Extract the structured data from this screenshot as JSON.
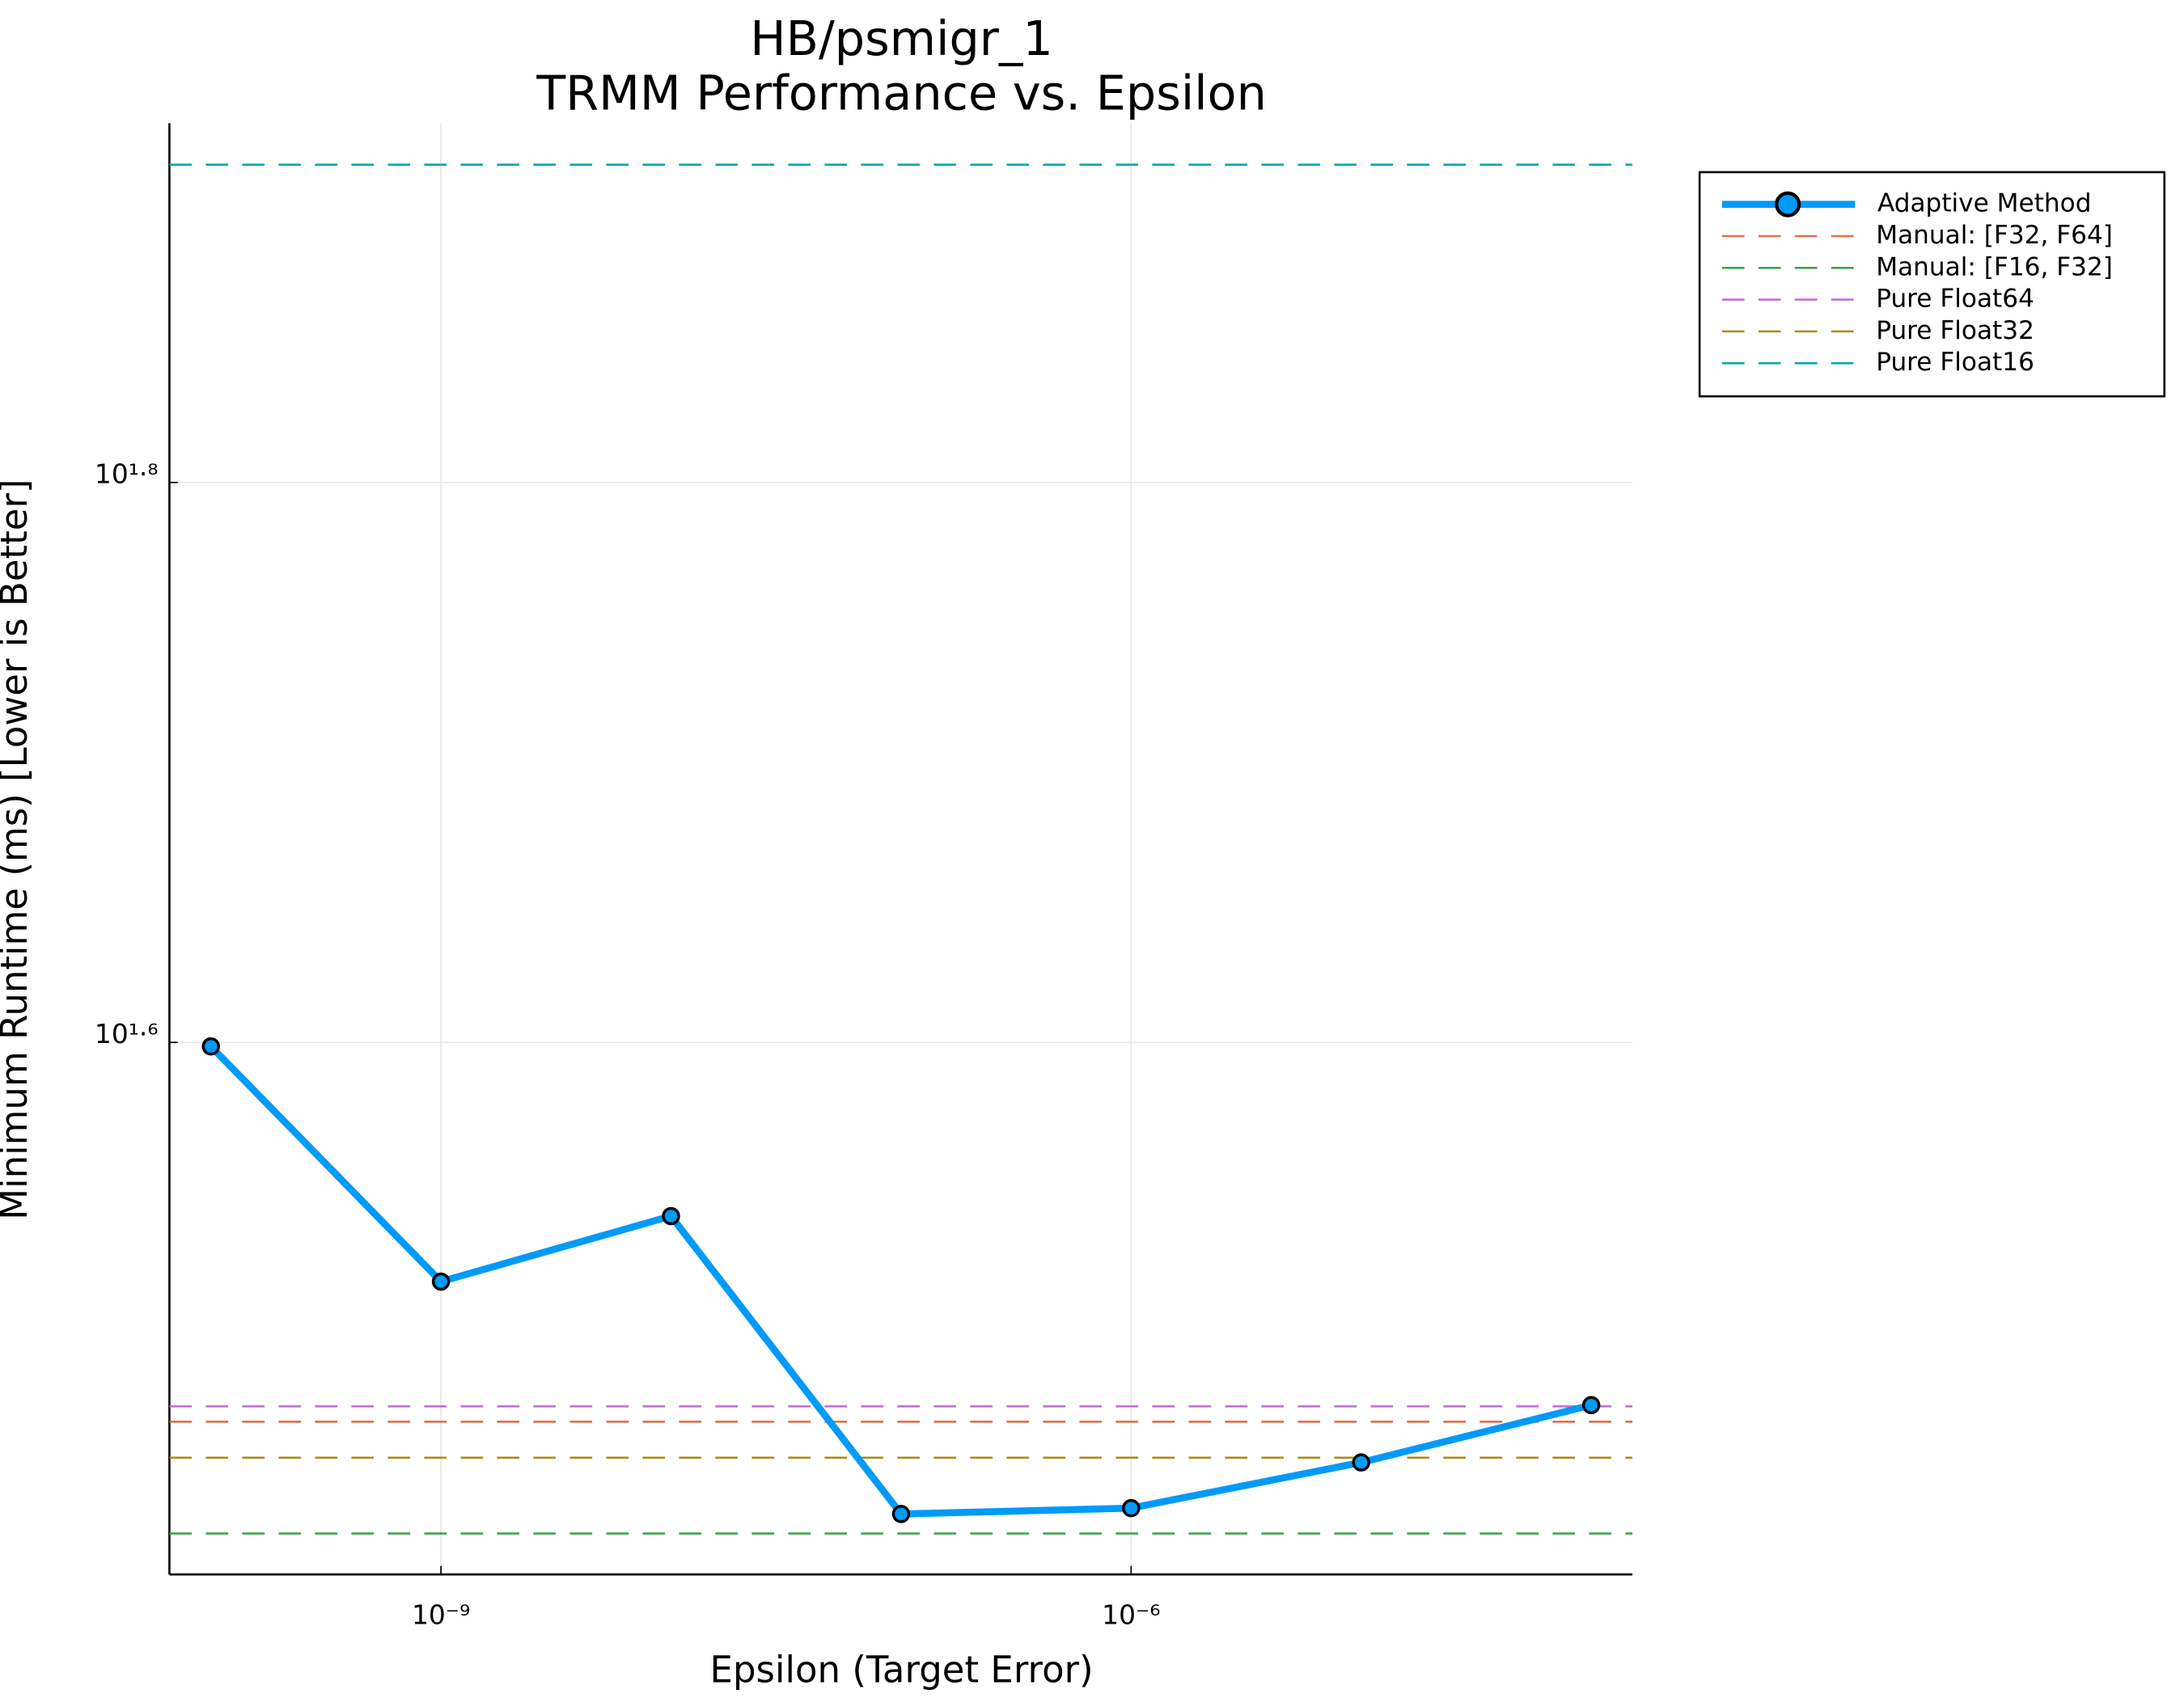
{
  "chart_data": {
    "type": "line",
    "title": "HB/psmigr_1",
    "subtitle": "TRMM Performance vs. Epsilon",
    "x_label": "Epsilon (Target Error)",
    "y_label": "Minimum Runtime (ms) [Lower is Better]",
    "x_log": true,
    "y_log": true,
    "grid": true,
    "legend": "outside-top-right",
    "xlim": [
      6.6e-11,
      0.000151
    ],
    "ylim": [
      25.7,
      84.8
    ],
    "xticks": [
      {
        "value": 1e-09,
        "label": "10⁻⁹"
      },
      {
        "value": 1e-06,
        "label": "10⁻⁶"
      }
    ],
    "yticks": [
      {
        "value": 39.81,
        "label": "10¹·⁶"
      },
      {
        "value": 63.1,
        "label": "10¹·⁸"
      }
    ],
    "series": [
      {
        "name": "Adaptive Method",
        "color": "#009af9",
        "x": [
          1e-10,
          1e-09,
          1e-08,
          1e-07,
          1e-06,
          1e-05,
          0.0001
        ],
        "values": [
          39.68,
          32.7,
          34.51,
          27.01,
          27.14,
          28.18,
          29.54
        ]
      }
    ],
    "hlines": [
      {
        "name": "Manual: [F32, F64]",
        "color": "#e26f46",
        "value": 29.14
      },
      {
        "name": "Manual: [F16, F32]",
        "color": "#3da44d",
        "value": 26.58
      },
      {
        "name": "Pure Float64",
        "color": "#c271d2",
        "value": 29.51
      },
      {
        "name": "Pure Float32",
        "color": "#ac8d18",
        "value": 28.29
      },
      {
        "name": "Pure Float16",
        "color": "#00a9ad",
        "value": 81.95
      }
    ]
  }
}
